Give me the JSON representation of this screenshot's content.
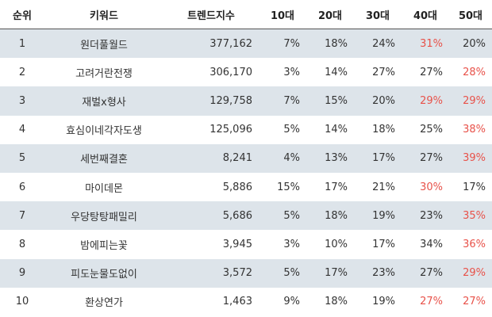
{
  "table": {
    "header": [
      "순위",
      "키워드",
      "트렌드지수",
      "10대",
      "20대",
      "30대",
      "40대",
      "50대"
    ],
    "highlight_color": "#e8524a",
    "rows": [
      [
        "1",
        "원더풀월드",
        "377,162",
        "7%",
        "18%",
        "24%",
        "31%",
        "20%"
      ],
      [
        "2",
        "고려거란전쟁",
        "306,170",
        "3%",
        "14%",
        "27%",
        "27%",
        "28%"
      ],
      [
        "3",
        "재벌x형사",
        "129,758",
        "7%",
        "15%",
        "20%",
        "29%",
        "29%"
      ],
      [
        "4",
        "효심이네각자도생",
        "125,096",
        "5%",
        "14%",
        "18%",
        "25%",
        "38%"
      ],
      [
        "5",
        "세번째결혼",
        "8,241",
        "4%",
        "13%",
        "17%",
        "27%",
        "39%"
      ],
      [
        "6",
        "마이데몬",
        "5,886",
        "15%",
        "17%",
        "21%",
        "30%",
        "17%"
      ],
      [
        "7",
        "우당탕탕패밀리",
        "5,686",
        "5%",
        "18%",
        "19%",
        "23%",
        "35%"
      ],
      [
        "8",
        "밤에피는꽃",
        "3,945",
        "3%",
        "10%",
        "17%",
        "34%",
        "36%"
      ],
      [
        "9",
        "피도눈물도없이",
        "3,572",
        "5%",
        "17%",
        "23%",
        "27%",
        "29%"
      ],
      [
        "10",
        "환상연가",
        "1,463",
        "9%",
        "18%",
        "19%",
        "27%",
        "27%"
      ]
    ]
  }
}
